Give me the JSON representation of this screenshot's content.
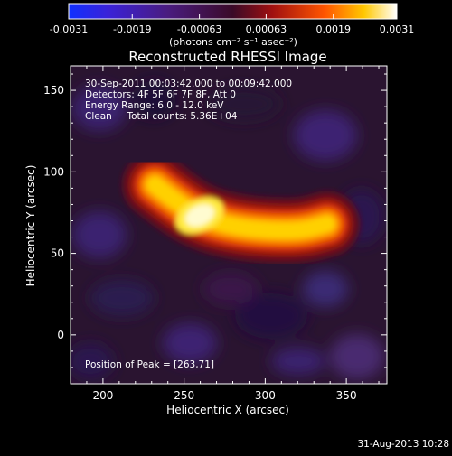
{
  "chart_data": {
    "type": "heatmap",
    "title": "Reconstructed RHESSI Image",
    "annotations": {
      "time_range": "30-Sep-2011 00:03:42.000 to 00:09:42.000",
      "detectors": "Detectors: 4F 5F 6F 7F 8F, Att 0",
      "energy_range": "Energy Range: 6.0 - 12.0 keV",
      "algorithm": "Clean     Total counts: 5.36E+04",
      "peak_position": "Position of Peak = [263,71]"
    },
    "colorbar": {
      "min": -0.0031,
      "max": 0.0031,
      "tick_labels": [
        "-0.0031",
        "-0.0019",
        "-0.00063",
        "0.00063",
        "0.0019",
        "0.0031"
      ],
      "tick_values": [
        -0.0031,
        -0.0019,
        -0.00063,
        0.00063,
        0.0019,
        0.0031
      ],
      "unit_label": "(photons cm⁻² s⁻¹ asec⁻²)",
      "colormap": "blue-purple-red-yellow-white"
    },
    "x_axis": {
      "label": "Heliocentric X (arcsec)",
      "range": [
        180,
        375
      ],
      "ticks": [
        200,
        250,
        300,
        350
      ],
      "tick_labels": [
        "200",
        "250",
        "300",
        "350"
      ]
    },
    "y_axis": {
      "label": "Heliocentric Y (arcsec)",
      "range": [
        -30,
        165
      ],
      "ticks": [
        0,
        50,
        100,
        150
      ],
      "tick_labels": [
        "0",
        "50",
        "100",
        "150"
      ]
    },
    "peak": {
      "x": 263,
      "y": 71
    },
    "source_arc": {
      "points": [
        [
          232,
          92
        ],
        [
          247,
          80
        ],
        [
          263,
          71
        ],
        [
          283,
          66
        ],
        [
          303,
          64
        ],
        [
          323,
          64
        ],
        [
          338,
          68
        ]
      ],
      "peak_value": 0.0031
    },
    "timestamp": "31-Aug-2013 10:28"
  }
}
